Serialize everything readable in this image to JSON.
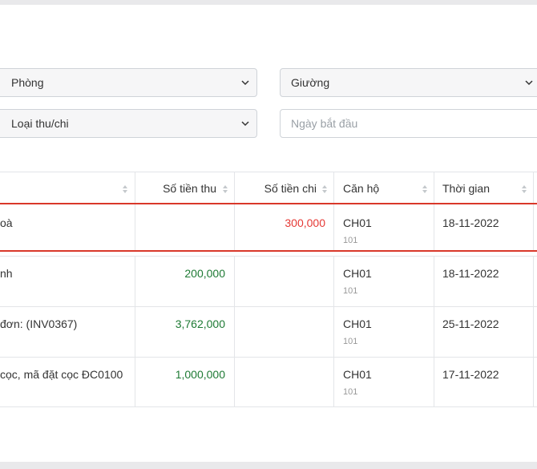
{
  "filters": {
    "room_select": "Phòng",
    "bed_select": "Giường",
    "type_select": "Loại thu/chi",
    "start_date_placeholder": "Ngày bắt đầu"
  },
  "table": {
    "headers": {
      "income": "Số tiền thu",
      "expense": "Số tiền chi",
      "apartment": "Căn hộ",
      "time": "Thời gian"
    },
    "rows": [
      {
        "description": "oà",
        "income": "",
        "expense": "300,000",
        "apartment": "CH01",
        "room": "101",
        "time": "18-11-2022"
      },
      {
        "description": "nh",
        "income": "200,000",
        "expense": "",
        "apartment": "CH01",
        "room": "101",
        "time": "18-11-2022"
      },
      {
        "description": "đơn: (INV0367)",
        "income": "3,762,000",
        "expense": "",
        "apartment": "CH01",
        "room": "101",
        "time": "25-11-2022"
      },
      {
        "description": "cọc, mã đặt cọc ĐC0100",
        "income": "1,000,000",
        "expense": "",
        "apartment": "CH01",
        "room": "101",
        "time": "17-11-2022"
      }
    ]
  },
  "colors": {
    "income": "#1e7a34",
    "expense": "#e53935",
    "highlight": "#d9382a"
  }
}
